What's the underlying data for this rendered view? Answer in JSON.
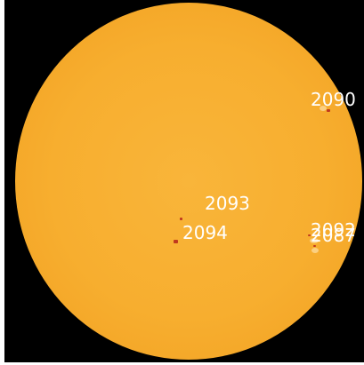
{
  "image": {
    "subject": "full-disk sun, active regions",
    "colors": {
      "background": "#000000",
      "disk": "#f7ae2f",
      "sunspot": "#c0391e",
      "label": "#ffffff"
    }
  },
  "regions": [
    {
      "id": "r2090",
      "label": "2090"
    },
    {
      "id": "r2093",
      "label": "2093"
    },
    {
      "id": "r2094",
      "label": "2094"
    },
    {
      "id": "r2092",
      "label": "2092"
    },
    {
      "id": "r2087",
      "label": "2087"
    }
  ]
}
